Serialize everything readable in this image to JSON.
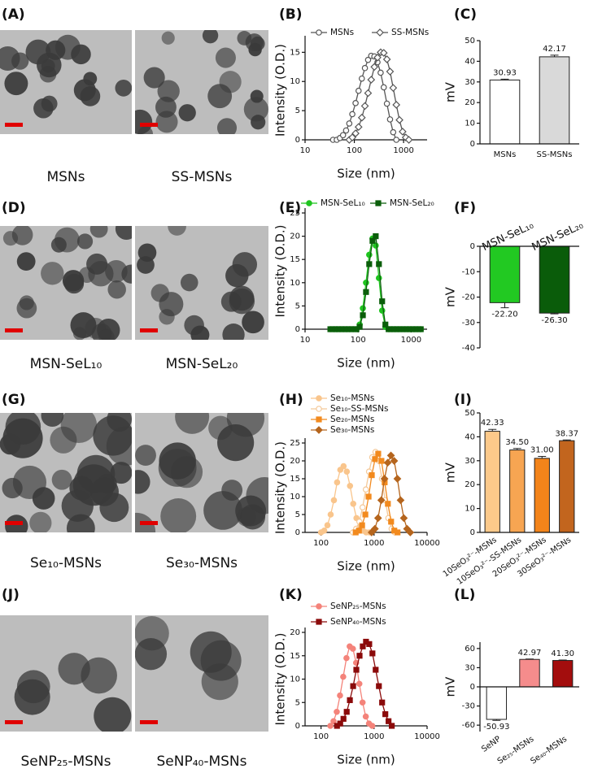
{
  "images": [
    {
      "label": "(A)",
      "captions": [
        "MSNs",
        "SS-MSNs"
      ]
    },
    {
      "label": "(D)",
      "captions": [
        "MSN-SeL₁₀",
        "MSN-SeL₂₀"
      ]
    },
    {
      "label": "(G)",
      "captions": [
        "Se₁₀-MSNs",
        "Se₃₀-MSNs"
      ]
    },
    {
      "label": "(J)",
      "captions": [
        "SeNP₂₅-MSNs",
        "SeNP₄₀-MSNs"
      ]
    }
  ],
  "chart_data": [
    {
      "type": "line",
      "label": "(B)",
      "xlabel": "Size (nm)",
      "ylabel": "Intensity (O.D.)",
      "xscale": "log",
      "xlim": [
        10,
        3000
      ],
      "xticks": [
        10,
        100,
        1000
      ],
      "ylim": [
        0,
        17
      ],
      "yticks": [
        0,
        5,
        10,
        15
      ],
      "series": [
        {
          "name": "MSNs",
          "color": "#555555",
          "marker": "circle",
          "filled": false,
          "x": [
            37,
            44,
            51,
            59,
            68,
            79,
            91,
            106,
            122,
            142,
            164,
            190,
            220,
            255,
            295,
            342,
            396,
            459,
            531,
            615,
            712
          ],
          "values": [
            0,
            0,
            0.3,
            0.8,
            1.6,
            2.8,
            4.4,
            6.3,
            8.4,
            10.5,
            12.3,
            13.7,
            14.4,
            14.3,
            13.3,
            11.5,
            9.0,
            6.2,
            3.5,
            1.3,
            0
          ]
        },
        {
          "name": "SS-MSNs",
          "color": "#555555",
          "marker": "diamond",
          "filled": false,
          "x": [
            79,
            91,
            106,
            122,
            142,
            164,
            190,
            220,
            255,
            295,
            342,
            396,
            459,
            531,
            615,
            712,
            825,
            955,
            1106,
            1281
          ],
          "values": [
            0,
            0.4,
            1.1,
            2.2,
            3.8,
            5.8,
            8.0,
            10.3,
            12.5,
            14.1,
            15.0,
            14.9,
            13.8,
            11.7,
            8.9,
            6.0,
            3.4,
            1.4,
            0.4,
            0
          ]
        }
      ]
    },
    {
      "type": "bar",
      "label": "(C)",
      "ylabel": "mV",
      "categories": [
        "MSNs",
        "SS-MSNs"
      ],
      "values": [
        30.93,
        42.17
      ],
      "value_labels": [
        "30.93",
        "42.17"
      ],
      "errors": [
        0.4,
        0.8
      ],
      "colors": [
        "#ffffff",
        "#d9d9d9"
      ],
      "ylim": [
        0,
        50
      ],
      "yticks": [
        0,
        10,
        20,
        30,
        40,
        50
      ]
    },
    {
      "type": "line",
      "label": "(E)",
      "xlabel": "Size (nm)",
      "ylabel": "Intensity (O.D.)",
      "xscale": "log",
      "xlim": [
        10,
        2000
      ],
      "xticks": [
        10,
        100,
        1000
      ],
      "ylim": [
        0,
        25
      ],
      "yticks": [
        0,
        5,
        10,
        15,
        20,
        25
      ],
      "x": [
        30,
        35,
        40,
        46,
        53,
        61,
        70,
        81,
        93,
        107,
        123,
        141,
        162,
        187,
        215,
        247,
        284,
        327,
        376,
        432,
        497,
        572,
        658,
        757,
        870,
        1000,
        1150,
        1320,
        1520
      ],
      "series": [
        {
          "name": "MSN-SeL₁₀",
          "color": "#1fc41f",
          "marker": "circle",
          "filled": true,
          "values": [
            0,
            0,
            0,
            0,
            0,
            0,
            0,
            0,
            0,
            1,
            4.5,
            10,
            16,
            19.5,
            18,
            11,
            4,
            0.5,
            0,
            0,
            0,
            0,
            0,
            0,
            0,
            0,
            0,
            0,
            0
          ]
        },
        {
          "name": "MSN-SeL₂₀",
          "color": "#0b5e0b",
          "marker": "square",
          "filled": true,
          "values": [
            0,
            0,
            0,
            0,
            0,
            0,
            0,
            0,
            0,
            0.5,
            3,
            8,
            14,
            19,
            20,
            14,
            6,
            1,
            0,
            0,
            0,
            0,
            0,
            0,
            0,
            0,
            0,
            0,
            0
          ]
        }
      ]
    },
    {
      "type": "bar",
      "label": "(F)",
      "ylabel": "mV",
      "categories": [
        "MSN-SeL₁₀",
        "MSN-SeL₂₀"
      ],
      "values": [
        -22.2,
        -26.3
      ],
      "value_labels": [
        "-22.20",
        "-26.30"
      ],
      "errors": [
        2.0,
        0.3
      ],
      "colors": [
        "#22c922",
        "#0a5c0a"
      ],
      "ylim": [
        -40,
        0
      ],
      "yticks": [
        0,
        -10,
        -20,
        -30,
        -40
      ]
    },
    {
      "type": "line",
      "label": "(H)",
      "xlabel": "Size (nm)",
      "ylabel": "Intensity (O.D.)",
      "xscale": "log",
      "xlim": [
        50,
        10000
      ],
      "xticks": [
        100,
        1000,
        10000
      ],
      "ylim": [
        0,
        25
      ],
      "yticks": [
        0,
        5,
        10,
        15,
        20,
        25
      ],
      "series": [
        {
          "name": "Se₁₀-MSNs",
          "color": "#f9c58c",
          "marker": "circle",
          "filled": true,
          "x": [
            100,
            115,
            132,
            152,
            175,
            201,
            231,
            266,
            306,
            352,
            405,
            466,
            536,
            617,
            710,
            816
          ],
          "values": [
            0,
            0.5,
            2,
            5,
            9,
            14,
            17.5,
            18.5,
            17,
            13,
            8,
            4,
            1.5,
            0.5,
            0,
            0
          ]
        },
        {
          "name": "Se₁₀-SS-MSNs",
          "color": "#f4c999",
          "marker": "circle",
          "filled": false,
          "x": [
            400,
            460,
            529,
            608,
            700,
            805,
            926,
            1065,
            1225,
            1409,
            1620,
            1863,
            2143,
            2464
          ],
          "values": [
            0,
            1,
            3,
            7,
            12,
            17,
            21,
            22.5,
            20,
            15,
            9,
            4,
            1,
            0
          ]
        },
        {
          "name": "Se₂₀-MSNs",
          "color": "#f28a1e",
          "marker": "square",
          "filled": true,
          "x": [
            450,
            518,
            595,
            685,
            788,
            906,
            1042,
            1198,
            1378,
            1585,
            1822,
            2096,
            2410,
            2772
          ],
          "values": [
            0,
            0.5,
            2,
            5,
            10,
            16,
            20.5,
            22,
            20,
            14,
            8,
            3,
            0.5,
            0
          ]
        },
        {
          "name": "Se₃₀-MSNs",
          "color": "#b5651d",
          "marker": "diamond",
          "filled": true,
          "x": [
            900,
            1035,
            1190,
            1369,
            1574,
            1810,
            2082,
            2394,
            2753,
            3166,
            3641,
            4187,
            4815
          ],
          "values": [
            0,
            1,
            4,
            9,
            15,
            19.5,
            21.5,
            20,
            15,
            9,
            4,
            1,
            0
          ]
        }
      ]
    },
    {
      "type": "bar",
      "label": "(I)",
      "ylabel": "mV",
      "categories": [
        "10SeO₃²⁻-MSNs",
        "10SeO₃²⁻-SS-MSNs",
        "20SeO₃²⁻-MSNs",
        "30SeO₃²⁻-MSNs"
      ],
      "values": [
        42.33,
        34.5,
        31.0,
        38.37
      ],
      "value_labels": [
        "42.33",
        "34.50",
        "31.00",
        "38.37"
      ],
      "errors": [
        0.8,
        0.6,
        0.8,
        0.3
      ],
      "colors": [
        "#fcc98a",
        "#f7a552",
        "#f3841a",
        "#c2651e"
      ],
      "ylim": [
        0,
        50
      ],
      "yticks": [
        0,
        10,
        20,
        30,
        40,
        50
      ]
    },
    {
      "type": "line",
      "label": "(K)",
      "xlabel": "Size (nm)",
      "ylabel": "Intensity (O.D.)",
      "xscale": "log",
      "xlim": [
        50,
        10000
      ],
      "xticks": [
        100,
        1000,
        10000
      ],
      "ylim": [
        0,
        20
      ],
      "yticks": [
        0,
        5,
        10,
        15,
        20
      ],
      "series": [
        {
          "name": "SeNP₂₅-MSNs",
          "color": "#f4837a",
          "marker": "circle",
          "filled": true,
          "x": [
            150,
            172,
            198,
            228,
            262,
            302,
            347,
            399,
            459,
            528,
            607,
            698,
            803,
            923
          ],
          "values": [
            0,
            1,
            3,
            6.5,
            10.5,
            14.5,
            17,
            16.5,
            13.5,
            9,
            5,
            2,
            0.5,
            0
          ]
        },
        {
          "name": "SeNP₄₀-MSNs",
          "color": "#8b0a0a",
          "marker": "square",
          "filled": true,
          "x": [
            200,
            230,
            265,
            305,
            350,
            403,
            463,
            533,
            613,
            705,
            811,
            932,
            1072,
            1233,
            1418,
            1631,
            1875,
            2157
          ],
          "values": [
            0,
            0.5,
            1.5,
            3,
            5.5,
            8.5,
            12,
            15,
            17,
            18,
            17.5,
            15.5,
            12,
            8.5,
            5,
            2.5,
            1,
            0
          ]
        }
      ]
    },
    {
      "type": "bar",
      "label": "(L)",
      "ylabel": "mV",
      "categories": [
        "SeNP",
        "Se₂₅-MSNs",
        "Se₄₀-MSNs"
      ],
      "values": [
        -50.93,
        42.97,
        41.3
      ],
      "value_labels": [
        "-50.93",
        "42.97",
        "41.30"
      ],
      "errors": [
        1.5,
        0.6,
        0.7
      ],
      "colors": [
        "#ffffff",
        "#f58c8c",
        "#a30d0d"
      ],
      "ylim": [
        -70,
        70
      ],
      "yticks": [
        -60,
        -30,
        0,
        30,
        60
      ]
    }
  ]
}
